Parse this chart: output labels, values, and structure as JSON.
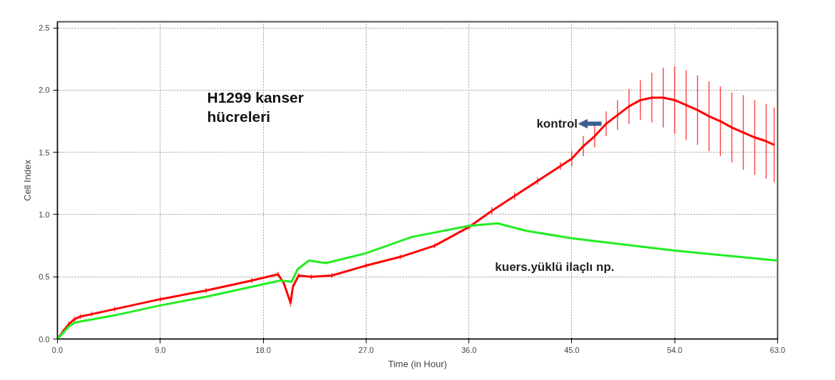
{
  "chart_data": {
    "type": "line",
    "xlabel": "Time (in Hour)",
    "ylabel": "Cell Index",
    "annotations": [
      "H1299 kanser\nhücreleri"
    ],
    "xlim": [
      0,
      63
    ],
    "ylim": [
      0,
      2.55
    ],
    "xticks": [
      {
        "value": 0,
        "label": "0.0"
      },
      {
        "value": 9,
        "label": "9.0"
      },
      {
        "value": 18,
        "label": "18.0"
      },
      {
        "value": 27,
        "label": "27.0"
      },
      {
        "value": 36,
        "label": "36.0"
      },
      {
        "value": 45,
        "label": "45.0"
      },
      {
        "value": 54,
        "label": "54.0"
      },
      {
        "value": 63,
        "label": "63.0"
      }
    ],
    "yticks": [
      {
        "value": 0,
        "label": "0.0"
      },
      {
        "value": 0.5,
        "label": "0.5"
      },
      {
        "value": 1,
        "label": "1.0"
      },
      {
        "value": 1.5,
        "label": "1.5"
      },
      {
        "value": 2,
        "label": "2.0"
      },
      {
        "value": 2.5,
        "label": "2.5"
      }
    ],
    "grid": true,
    "legend": false,
    "marker": "none",
    "line_style": "solid",
    "series": [
      {
        "name": "kontrol",
        "color": "#ff0000",
        "x": [
          0,
          0.5,
          1,
          1.5,
          2,
          3,
          5,
          9,
          13,
          17,
          19.3,
          19.8,
          20.4,
          20.6,
          21.1,
          22.2,
          24,
          27,
          30,
          33,
          36,
          38,
          40,
          42,
          44,
          45,
          46,
          47,
          48,
          49,
          50,
          51,
          52,
          53,
          54,
          55,
          56,
          57,
          58,
          59,
          60,
          61,
          62,
          62.7
        ],
        "values": [
          0,
          0.06,
          0.12,
          0.16,
          0.18,
          0.2,
          0.24,
          0.32,
          0.39,
          0.47,
          0.52,
          0.45,
          0.29,
          0.42,
          0.51,
          0.5,
          0.51,
          0.59,
          0.66,
          0.75,
          0.9,
          1.03,
          1.15,
          1.27,
          1.39,
          1.45,
          1.55,
          1.63,
          1.73,
          1.8,
          1.87,
          1.92,
          1.94,
          1.94,
          1.92,
          1.88,
          1.84,
          1.79,
          1.75,
          1.7,
          1.66,
          1.62,
          1.59,
          1.56
        ],
        "errors": [
          null,
          0.02,
          0.02,
          0.02,
          0.02,
          0.02,
          0.02,
          0.02,
          0.02,
          0.02,
          0.02,
          0.02,
          0.03,
          0.02,
          0.02,
          0.02,
          0.02,
          0.02,
          0.02,
          0.02,
          0.02,
          0.03,
          0.03,
          0.03,
          0.03,
          0.06,
          0.08,
          0.09,
          0.1,
          0.12,
          0.14,
          0.16,
          0.2,
          0.24,
          0.27,
          0.28,
          0.28,
          0.28,
          0.28,
          0.28,
          0.3,
          0.3,
          0.3,
          0.3
        ]
      },
      {
        "name": "kuers.yüklü ilaçlı np.",
        "color": "#22ee22",
        "x": [
          0,
          0.5,
          1,
          1.5,
          2,
          5,
          9,
          13,
          18,
          19.5,
          20.5,
          21,
          22,
          23.5,
          27,
          31,
          36,
          38.5,
          41,
          45,
          54,
          63
        ],
        "values": [
          0,
          0.05,
          0.1,
          0.13,
          0.14,
          0.19,
          0.27,
          0.34,
          0.44,
          0.47,
          0.46,
          0.56,
          0.63,
          0.61,
          0.69,
          0.82,
          0.91,
          0.93,
          0.87,
          0.81,
          0.71,
          0.63
        ]
      }
    ]
  }
}
